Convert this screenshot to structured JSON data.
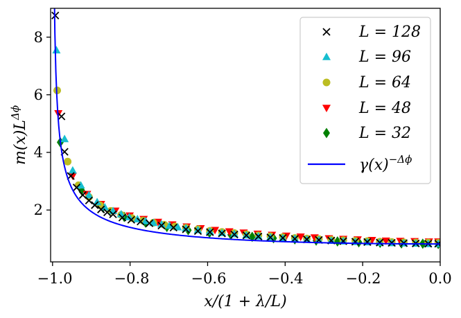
{
  "chart_data": {
    "type": "scatter",
    "xlabel": "x/(1 + λ/L)",
    "ylabel": "m(x)L^Δϕ",
    "ylabel_base": "m(x)L",
    "ylabel_sup": "Δϕ",
    "xlim": [
      -1.005,
      0.0
    ],
    "ylim": [
      0.2,
      9.0
    ],
    "x_ticks": [
      -1.0,
      -0.8,
      -0.6,
      -0.4,
      -0.2,
      0.0
    ],
    "x_tick_labels": [
      "−1.0",
      "−0.8",
      "−0.6",
      "−0.4",
      "−0.2",
      "0.0"
    ],
    "y_ticks": [
      2,
      4,
      6,
      8
    ],
    "y_tick_labels": [
      "2",
      "4",
      "6",
      "8"
    ],
    "legend_position": "top-right",
    "series": [
      {
        "name": "L = 128",
        "marker": "x",
        "color": "#000000",
        "x": [
          -0.993,
          -0.977,
          -0.969,
          -0.953,
          -0.938,
          -0.922,
          -0.906,
          -0.891,
          -0.875,
          -0.859,
          -0.844,
          -0.82,
          -0.797,
          -0.773,
          -0.75,
          -0.719,
          -0.688,
          -0.656,
          -0.625,
          -0.594,
          -0.563,
          -0.531,
          -0.5,
          -0.469,
          -0.438,
          -0.406,
          -0.375,
          -0.344,
          -0.313,
          -0.281,
          -0.25,
          -0.219,
          -0.188,
          -0.156,
          -0.125,
          -0.094,
          -0.063,
          -0.031,
          -0.005
        ],
        "y": [
          8.75,
          5.25,
          4.02,
          3.18,
          2.78,
          2.52,
          2.33,
          2.17,
          2.02,
          1.92,
          1.85,
          1.74,
          1.66,
          1.6,
          1.54,
          1.46,
          1.39,
          1.33,
          1.27,
          1.23,
          1.19,
          1.15,
          1.12,
          1.08,
          1.05,
          1.03,
          1.0,
          0.98,
          0.96,
          0.94,
          0.92,
          0.9,
          0.89,
          0.87,
          0.86,
          0.85,
          0.84,
          0.83,
          0.83
        ]
      },
      {
        "name": "L = 96",
        "marker": "triangle-up",
        "color": "#17becf",
        "x": [
          -0.99,
          -0.969,
          -0.948,
          -0.927,
          -0.906,
          -0.885,
          -0.865,
          -0.844,
          -0.823,
          -0.802,
          -0.781,
          -0.76,
          -0.74,
          -0.719,
          -0.698,
          -0.677,
          -0.656,
          -0.625,
          -0.594,
          -0.563,
          -0.531,
          -0.5,
          -0.469,
          -0.438,
          -0.406,
          -0.375,
          -0.344,
          -0.313,
          -0.281,
          -0.25,
          -0.219,
          -0.188,
          -0.156,
          -0.125,
          -0.094,
          -0.063,
          -0.031,
          -0.005
        ],
        "y": [
          7.55,
          4.47,
          3.38,
          2.86,
          2.52,
          2.28,
          2.1,
          1.97,
          1.86,
          1.76,
          1.69,
          1.62,
          1.56,
          1.51,
          1.46,
          1.41,
          1.37,
          1.31,
          1.26,
          1.21,
          1.17,
          1.13,
          1.09,
          1.06,
          1.03,
          1.01,
          0.98,
          0.96,
          0.94,
          0.92,
          0.9,
          0.89,
          0.87,
          0.86,
          0.85,
          0.84,
          0.83,
          0.83
        ]
      },
      {
        "name": "L = 64",
        "marker": "circle",
        "color": "#bcbd22",
        "x": [
          -0.988,
          -0.961,
          -0.933,
          -0.906,
          -0.878,
          -0.85,
          -0.823,
          -0.795,
          -0.767,
          -0.74,
          -0.712,
          -0.684,
          -0.656,
          -0.625,
          -0.594,
          -0.563,
          -0.531,
          -0.5,
          -0.469,
          -0.438,
          -0.406,
          -0.375,
          -0.344,
          -0.313,
          -0.281,
          -0.25,
          -0.219,
          -0.188,
          -0.156,
          -0.125,
          -0.094,
          -0.063,
          -0.031,
          -0.005
        ],
        "y": [
          6.15,
          3.68,
          2.86,
          2.45,
          2.17,
          1.97,
          1.83,
          1.72,
          1.63,
          1.56,
          1.49,
          1.43,
          1.38,
          1.33,
          1.28,
          1.24,
          1.2,
          1.16,
          1.12,
          1.09,
          1.06,
          1.03,
          1.01,
          0.99,
          0.97,
          0.95,
          0.93,
          0.92,
          0.9,
          0.89,
          0.88,
          0.87,
          0.87,
          0.86
        ]
      },
      {
        "name": "L = 48",
        "marker": "triangle-down",
        "color": "#ff0000",
        "x": [
          -0.985,
          -0.948,
          -0.911,
          -0.875,
          -0.838,
          -0.801,
          -0.765,
          -0.728,
          -0.691,
          -0.654,
          -0.618,
          -0.581,
          -0.544,
          -0.507,
          -0.471,
          -0.434,
          -0.397,
          -0.36,
          -0.324,
          -0.287,
          -0.25,
          -0.213,
          -0.176,
          -0.14,
          -0.103,
          -0.066,
          -0.029,
          -0.005
        ],
        "y": [
          5.35,
          3.18,
          2.55,
          2.2,
          1.97,
          1.8,
          1.68,
          1.58,
          1.49,
          1.42,
          1.36,
          1.3,
          1.25,
          1.21,
          1.17,
          1.13,
          1.1,
          1.07,
          1.04,
          1.01,
          0.99,
          0.97,
          0.95,
          0.93,
          0.92,
          0.91,
          0.9,
          0.9
        ]
      },
      {
        "name": "L = 32",
        "marker": "diamond",
        "color": "#008000",
        "x": [
          -0.98,
          -0.925,
          -0.87,
          -0.815,
          -0.76,
          -0.705,
          -0.65,
          -0.595,
          -0.54,
          -0.485,
          -0.43,
          -0.375,
          -0.32,
          -0.265,
          -0.21,
          -0.155,
          -0.1,
          -0.045,
          -0.005
        ],
        "y": [
          4.35,
          2.68,
          2.08,
          1.76,
          1.56,
          1.41,
          1.3,
          1.21,
          1.14,
          1.07,
          1.02,
          0.98,
          0.94,
          0.91,
          0.88,
          0.86,
          0.84,
          0.83,
          0.82
        ]
      },
      {
        "name": "γ(x)^−Δϕ",
        "marker": "line",
        "color": "#0000ff",
        "name_base": "γ(x)",
        "name_sup": "−Δϕ",
        "curve_coeff": 0.823,
        "curve_exponent": 0.518
      }
    ]
  }
}
